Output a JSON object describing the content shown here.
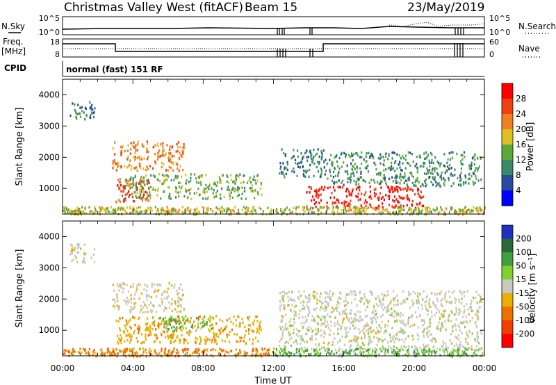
{
  "header": {
    "station": "Christmas Valley West (fitACF)",
    "beam": "Beam 15",
    "date": "23/May/2019"
  },
  "sky_panel": {
    "left_label": "N.Sky",
    "right_label": "N.Search",
    "left_ticks": [
      "10^5",
      "10^0"
    ],
    "right_ticks": [
      "10^5",
      "10^0"
    ]
  },
  "freq_panel": {
    "left_label_1": "Freq.",
    "left_label_2": "[MHz]",
    "right_label": "Nave",
    "left_ticks": [
      "18",
      "8"
    ],
    "right_ticks": [
      "60",
      "0"
    ]
  },
  "cpid": {
    "label": "CPID",
    "value": "normal (fast) 151 RF"
  },
  "x_axis": {
    "label": "Time UT",
    "ticks": [
      "00:00",
      "04:00",
      "08:00",
      "12:00",
      "16:00",
      "20:00",
      "00:00"
    ]
  },
  "colors": {
    "power_scale": [
      "#0000ff",
      "#2a4a9a",
      "#3a8a6a",
      "#5aaa3a",
      "#e0c020",
      "#f08020",
      "#f04010",
      "#ff0000"
    ],
    "velocity_scale": [
      "#2030c0",
      "#2a6a3a",
      "#40a040",
      "#80d030",
      "#c8c8c0",
      "#e8b000",
      "#f07000",
      "#f04000",
      "#ff0000"
    ]
  },
  "chart_data": [
    {
      "type": "heatmap",
      "name": "power",
      "ylabel": "Slant Range [km]",
      "yticks": [
        "1000",
        "2000",
        "3000",
        "4000"
      ],
      "ylim": [
        180,
        4500
      ],
      "xlim_hours": [
        0,
        24
      ],
      "colorbar": {
        "label": "Power [dB]",
        "ticks": [
          "4",
          "8",
          "12",
          "16",
          "20",
          "24",
          "28"
        ],
        "range": [
          0,
          32
        ]
      },
      "regions": [
        {
          "t0": 0.4,
          "t1": 1.8,
          "r0": 3200,
          "r1": 3800,
          "power": 9
        },
        {
          "t0": 2.8,
          "t1": 6.9,
          "r0": 1600,
          "r1": 2550,
          "power": 22
        },
        {
          "t0": 3.0,
          "t1": 5.0,
          "r0": 600,
          "r1": 1400,
          "power": 26
        },
        {
          "t0": 3.5,
          "t1": 11.3,
          "r0": 700,
          "r1": 1500,
          "power": 14
        },
        {
          "t0": 12.3,
          "t1": 15.0,
          "r0": 1400,
          "r1": 2300,
          "power": 9
        },
        {
          "t0": 13.8,
          "t1": 20.5,
          "r0": 400,
          "r1": 1100,
          "power": 29
        },
        {
          "t0": 15.0,
          "t1": 23.8,
          "r0": 1100,
          "r1": 2200,
          "power": 11
        },
        {
          "t0": 0.0,
          "t1": 24.0,
          "r0": 200,
          "r1": 450,
          "power": 17
        }
      ]
    },
    {
      "type": "heatmap",
      "name": "velocity",
      "ylabel": "Slant Range [km]",
      "yticks": [
        "1000",
        "2000",
        "3000",
        "4000"
      ],
      "ylim": [
        180,
        4500
      ],
      "xlim_hours": [
        0,
        24
      ],
      "colorbar": {
        "label": "Velocity [m s⁻¹]",
        "ticks": [
          "200",
          "100",
          "50",
          "15",
          "-15",
          "-50",
          "-100",
          "-200"
        ],
        "range": [
          -250,
          250
        ]
      },
      "regions": [
        {
          "t0": 0.4,
          "t1": 1.8,
          "r0": 3200,
          "r1": 3800,
          "velocity": 0
        },
        {
          "t0": 2.8,
          "t1": 6.9,
          "r0": 1600,
          "r1": 2550,
          "velocity": -5
        },
        {
          "t0": 3.0,
          "t1": 11.3,
          "r0": 600,
          "r1": 1500,
          "velocity": -40
        },
        {
          "t0": 5.5,
          "t1": 8.5,
          "r0": 1000,
          "r1": 1500,
          "velocity": 30
        },
        {
          "t0": 12.3,
          "t1": 23.8,
          "r0": 400,
          "r1": 2300,
          "velocity": 0
        },
        {
          "t0": 0.0,
          "t1": 12.0,
          "r0": 200,
          "r1": 450,
          "velocity": -60
        },
        {
          "t0": 12.0,
          "t1": 24.0,
          "r0": 200,
          "r1": 450,
          "velocity": 30
        }
      ]
    }
  ]
}
